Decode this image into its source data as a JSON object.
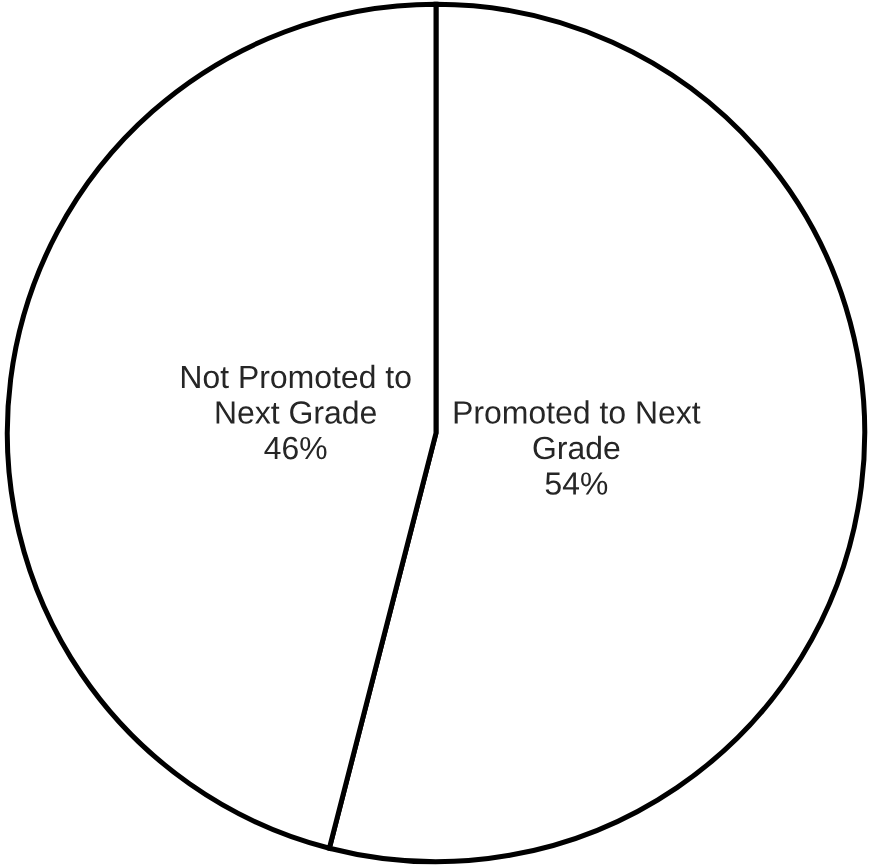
{
  "chart_data": {
    "type": "pie",
    "categories": [
      "Promoted to Next Grade",
      "Not Promoted to Next Grade"
    ],
    "values": [
      54,
      46
    ],
    "colors": [
      "#ffffff",
      "#ffffff"
    ],
    "value_labels": [
      "54%",
      "46%"
    ],
    "legend": false
  }
}
